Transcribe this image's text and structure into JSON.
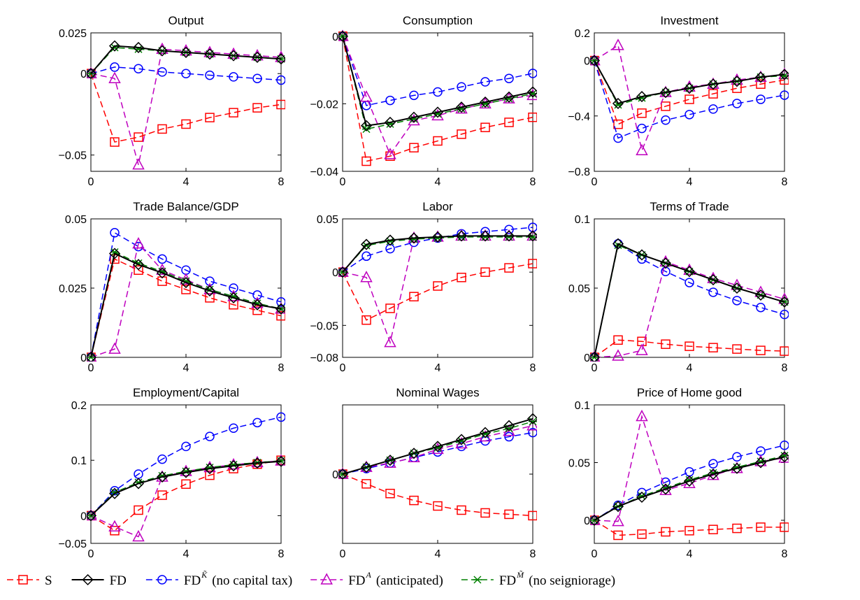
{
  "chart_data": {
    "type": "line",
    "x": [
      0,
      1,
      2,
      3,
      4,
      5,
      6,
      7,
      8
    ],
    "xticks": [
      0,
      4,
      8
    ],
    "styles": {
      "S": {
        "color": "#ff0000",
        "dash": true,
        "marker": "square"
      },
      "FD": {
        "color": "#000000",
        "dash": false,
        "marker": "diamond"
      },
      "FDK": {
        "color": "#0000ff",
        "dash": true,
        "marker": "circle"
      },
      "FDA": {
        "color": "#bf00bf",
        "dash": true,
        "marker": "triangle"
      },
      "FDM": {
        "color": "#008000",
        "dash": true,
        "marker": "star"
      }
    },
    "legend": [
      {
        "key": "S",
        "label": "S",
        "sup": ""
      },
      {
        "key": "FD",
        "label": "FD",
        "sup": ""
      },
      {
        "key": "FDK",
        "label": "FD",
        "sup": "K̃",
        "note": "(no capital tax)"
      },
      {
        "key": "FDA",
        "label": "FD",
        "sup": "A",
        "note": "(anticipated)"
      },
      {
        "key": "FDM",
        "label": "FD",
        "sup": "M̃",
        "note": "(no seigniorage)"
      }
    ],
    "panels": [
      {
        "title": "Output",
        "ylim": [
          -0.06,
          0.025
        ],
        "yticks": [
          {
            "v": 0.025,
            "t": "0.025"
          },
          {
            "v": 0,
            "t": "0"
          },
          {
            "v": -0.05,
            "t": "−0.05"
          }
        ],
        "series": {
          "S": [
            0,
            -0.042,
            -0.039,
            -0.034,
            -0.031,
            -0.027,
            -0.024,
            -0.021,
            -0.019
          ],
          "FD": [
            0,
            0.017,
            0.016,
            0.014,
            0.013,
            0.012,
            0.011,
            0.01,
            0.009
          ],
          "FDK": [
            0,
            0.004,
            0.003,
            0.001,
            0.0,
            -0.001,
            -0.002,
            -0.003,
            -0.004
          ],
          "FDA": [
            0,
            -0.003,
            -0.056,
            0.015,
            0.014,
            0.013,
            0.012,
            0.011,
            0.01
          ],
          "FDM": [
            0,
            0.016,
            0.015,
            0.014,
            0.013,
            0.012,
            0.011,
            0.01,
            0.009
          ]
        }
      },
      {
        "title": "Consumption",
        "ylim": [
          -0.04,
          0.001
        ],
        "yticks": [
          {
            "v": 0,
            "t": "0"
          },
          {
            "v": -0.02,
            "t": "−0.02"
          },
          {
            "v": -0.04,
            "t": "−0.04"
          }
        ],
        "series": {
          "S": [
            0,
            -0.037,
            -0.0355,
            -0.033,
            -0.031,
            -0.029,
            -0.027,
            -0.0255,
            -0.024
          ],
          "FD": [
            0,
            -0.0265,
            -0.0255,
            -0.024,
            -0.0225,
            -0.021,
            -0.0195,
            -0.018,
            -0.0165
          ],
          "FDK": [
            0,
            -0.0205,
            -0.019,
            -0.0175,
            -0.0165,
            -0.015,
            -0.0135,
            -0.0125,
            -0.011
          ],
          "FDA": [
            0,
            -0.018,
            -0.035,
            -0.025,
            -0.0235,
            -0.0215,
            -0.02,
            -0.0185,
            -0.0175
          ],
          "FDM": [
            0,
            -0.0275,
            -0.026,
            -0.0245,
            -0.023,
            -0.0215,
            -0.02,
            -0.0185,
            -0.017
          ]
        }
      },
      {
        "title": "Investment",
        "ylim": [
          -0.8,
          0.2
        ],
        "yticks": [
          {
            "v": 0.2,
            "t": "0.2"
          },
          {
            "v": 0,
            "t": "0"
          },
          {
            "v": -0.4,
            "t": "−0.4"
          },
          {
            "v": -0.8,
            "t": "−0.8"
          }
        ],
        "series": {
          "S": [
            0,
            -0.46,
            -0.38,
            -0.33,
            -0.28,
            -0.24,
            -0.2,
            -0.17,
            -0.14
          ],
          "FD": [
            0,
            -0.31,
            -0.26,
            -0.23,
            -0.2,
            -0.17,
            -0.15,
            -0.12,
            -0.1
          ],
          "FDK": [
            0,
            -0.56,
            -0.49,
            -0.43,
            -0.39,
            -0.35,
            -0.31,
            -0.28,
            -0.25
          ],
          "FDA": [
            0,
            0.11,
            -0.65,
            -0.23,
            -0.19,
            -0.17,
            -0.14,
            -0.12,
            -0.1
          ],
          "FDM": [
            0,
            -0.32,
            -0.27,
            -0.23,
            -0.2,
            -0.17,
            -0.15,
            -0.12,
            -0.11
          ]
        }
      },
      {
        "title": "Trade Balance/GDP",
        "ylim": [
          0,
          0.05
        ],
        "yticks": [
          {
            "v": 0.05,
            "t": "0.05"
          },
          {
            "v": 0.025,
            "t": "0.025"
          },
          {
            "v": 0,
            "t": "0"
          }
        ],
        "series": {
          "S": [
            0,
            0.0355,
            0.0315,
            0.0275,
            0.0245,
            0.0215,
            0.019,
            0.017,
            0.015
          ],
          "FD": [
            0,
            0.0375,
            0.0335,
            0.0305,
            0.027,
            0.024,
            0.0215,
            0.019,
            0.0175
          ],
          "FDK": [
            0,
            0.045,
            0.04,
            0.0355,
            0.0315,
            0.0275,
            0.025,
            0.0225,
            0.02
          ],
          "FDA": [
            0,
            0.003,
            0.041,
            0.0315,
            0.028,
            0.0245,
            0.022,
            0.0195,
            0.0175
          ],
          "FDM": [
            0,
            0.038,
            0.034,
            0.031,
            0.0275,
            0.0245,
            0.022,
            0.0195,
            0.0175
          ]
        }
      },
      {
        "title": "Labor",
        "ylim": [
          -0.08,
          0.05
        ],
        "yticks": [
          {
            "v": 0.05,
            "t": "0.05"
          },
          {
            "v": 0,
            "t": "0"
          },
          {
            "v": -0.05,
            "t": "−0.05"
          },
          {
            "v": -0.08,
            "t": "−0.08"
          }
        ],
        "series": {
          "S": [
            0,
            -0.045,
            -0.034,
            -0.023,
            -0.013,
            -0.005,
            0,
            0.004,
            0.008
          ],
          "FD": [
            0,
            0.026,
            0.03,
            0.032,
            0.033,
            0.034,
            0.034,
            0.034,
            0.034
          ],
          "FDK": [
            0,
            0.015,
            0.022,
            0.028,
            0.032,
            0.036,
            0.038,
            0.04,
            0.042
          ],
          "FDA": [
            0,
            -0.005,
            -0.066,
            0.032,
            0.033,
            0.034,
            0.034,
            0.034,
            0.034
          ],
          "FDM": [
            0,
            0.025,
            0.029,
            0.031,
            0.032,
            0.033,
            0.033,
            0.033,
            0.033
          ]
        }
      },
      {
        "title": "Terms of Trade",
        "ylim": [
          0,
          0.1
        ],
        "yticks": [
          {
            "v": 0.1,
            "t": "0.1"
          },
          {
            "v": 0.05,
            "t": "0.05"
          },
          {
            "v": 0,
            "t": "0"
          }
        ],
        "series": {
          "S": [
            0,
            0.0125,
            0.0115,
            0.0095,
            0.008,
            0.007,
            0.006,
            0.005,
            0.0045
          ],
          "FD": [
            0,
            0.082,
            0.074,
            0.068,
            0.062,
            0.056,
            0.05,
            0.045,
            0.04
          ],
          "FDK": [
            0,
            0.082,
            0.071,
            0.062,
            0.054,
            0.047,
            0.041,
            0.036,
            0.031
          ],
          "FDA": [
            0,
            0.001,
            0.005,
            0.069,
            0.063,
            0.057,
            0.052,
            0.047,
            0.042
          ],
          "FDM": [
            0,
            0.081,
            0.074,
            0.068,
            0.062,
            0.056,
            0.05,
            0.045,
            0.04
          ]
        }
      },
      {
        "title": "Employment/Capital",
        "ylim": [
          -0.05,
          0.2
        ],
        "yticks": [
          {
            "v": 0.2,
            "t": "0.2"
          },
          {
            "v": 0.1,
            "t": "0.1"
          },
          {
            "v": 0,
            "t": "0"
          },
          {
            "v": -0.05,
            "t": "−0.05"
          }
        ],
        "series": {
          "S": [
            0,
            -0.027,
            0.01,
            0.037,
            0.057,
            0.073,
            0.085,
            0.093,
            0.1
          ],
          "FD": [
            0,
            0.04,
            0.058,
            0.07,
            0.078,
            0.085,
            0.09,
            0.095,
            0.098
          ],
          "FDK": [
            0,
            0.045,
            0.075,
            0.102,
            0.125,
            0.143,
            0.158,
            0.168,
            0.178
          ],
          "FDA": [
            0,
            -0.02,
            -0.038,
            0.07,
            0.08,
            0.087,
            0.092,
            0.096,
            0.099
          ],
          "FDM": [
            0,
            0.042,
            0.06,
            0.072,
            0.08,
            0.087,
            0.092,
            0.096,
            0.099
          ]
        }
      },
      {
        "title": "Nominal Wages",
        "ylim": [
          -0.05,
          0.05
        ],
        "yticks": [
          {
            "v": 0,
            "t": "0"
          }
        ],
        "series": {
          "S": [
            0,
            -0.007,
            -0.014,
            -0.019,
            -0.023,
            -0.026,
            -0.028,
            -0.029,
            -0.03
          ],
          "FD": [
            0,
            0.005,
            0.01,
            0.015,
            0.02,
            0.025,
            0.03,
            0.035,
            0.04
          ],
          "FDK": [
            0,
            0.004,
            0.008,
            0.012,
            0.016,
            0.02,
            0.024,
            0.027,
            0.03
          ],
          "FDA": [
            0,
            0.005,
            0.008,
            0.012,
            0.018,
            0.022,
            0.027,
            0.031,
            0.035
          ],
          "FDM": [
            0,
            0.005,
            0.01,
            0.015,
            0.019,
            0.024,
            0.029,
            0.033,
            0.038
          ]
        }
      },
      {
        "title": "Price of Home good",
        "ylim": [
          -0.02,
          0.1
        ],
        "yticks": [
          {
            "v": 0.1,
            "t": "0.1"
          },
          {
            "v": 0.05,
            "t": "0.05"
          },
          {
            "v": 0,
            "t": "0"
          }
        ],
        "series": {
          "S": [
            0,
            -0.013,
            -0.012,
            -0.01,
            -0.009,
            -0.008,
            -0.007,
            -0.006,
            -0.006
          ],
          "FD": [
            0,
            0.012,
            0.02,
            0.027,
            0.034,
            0.04,
            0.045,
            0.05,
            0.055
          ],
          "FDK": [
            0,
            0.013,
            0.024,
            0.033,
            0.042,
            0.049,
            0.055,
            0.06,
            0.065
          ],
          "FDA": [
            0,
            -0.001,
            0.09,
            0.026,
            0.032,
            0.039,
            0.045,
            0.051,
            0.054
          ],
          "FDM": [
            0,
            0.012,
            0.021,
            0.028,
            0.035,
            0.041,
            0.046,
            0.051,
            0.056
          ]
        }
      }
    ]
  }
}
